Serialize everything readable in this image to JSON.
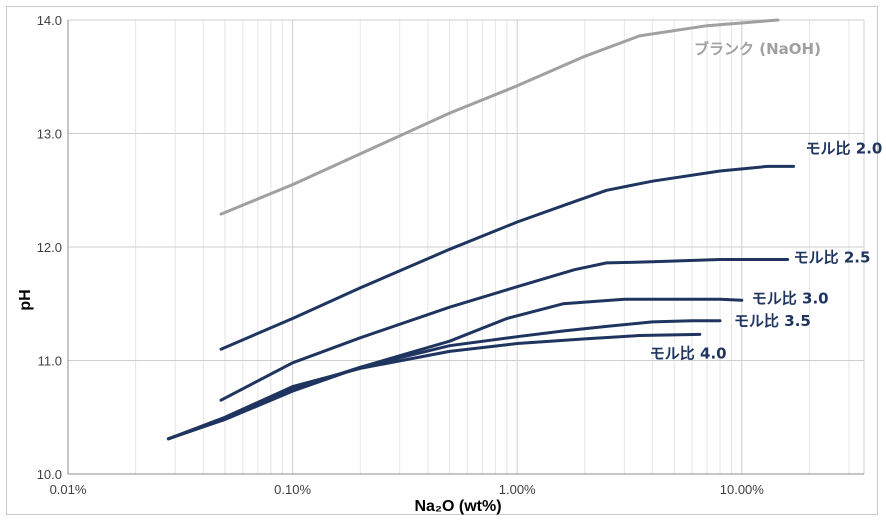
{
  "chart_data": {
    "type": "line",
    "title": "",
    "xlabel": "Na₂O (wt%)",
    "ylabel": "pH",
    "x_scale": "log",
    "xlim": [
      0.01,
      35
    ],
    "ylim": [
      10.0,
      14.0
    ],
    "x_ticks": [
      {
        "value": 0.01,
        "label": "0.01%"
      },
      {
        "value": 0.1,
        "label": "0.10%"
      },
      {
        "value": 1,
        "label": "1.00%"
      },
      {
        "value": 10,
        "label": "10.00%"
      }
    ],
    "y_ticks": [
      {
        "value": 10,
        "label": "10.0"
      },
      {
        "value": 11,
        "label": "11.0"
      },
      {
        "value": 12,
        "label": "12.0"
      },
      {
        "value": 13,
        "label": "13.0"
      },
      {
        "value": 14,
        "label": "14.0"
      }
    ],
    "grid": true,
    "series": [
      {
        "name": "ブランク (NaOH)",
        "color": "#a0a0a0",
        "x": [
          0.048,
          0.1,
          0.2,
          0.5,
          1.0,
          2.0,
          3.5,
          7.0,
          14.5
        ],
        "y": [
          12.29,
          12.55,
          12.82,
          13.18,
          13.42,
          13.68,
          13.86,
          13.95,
          14.0
        ]
      },
      {
        "name": "モル比 2.0",
        "color": "#1f3560",
        "x": [
          0.048,
          0.1,
          0.2,
          0.5,
          1.0,
          1.8,
          2.5,
          4.0,
          8.0,
          13.0,
          17.0
        ],
        "y": [
          11.1,
          11.37,
          11.64,
          11.98,
          12.22,
          12.4,
          12.5,
          12.58,
          12.67,
          12.71,
          12.71
        ]
      },
      {
        "name": "モル比 2.5",
        "color": "#1f3560",
        "x": [
          0.048,
          0.1,
          0.2,
          0.5,
          1.0,
          1.8,
          2.5,
          4.0,
          8.0,
          12.0,
          16.0
        ],
        "y": [
          10.65,
          10.98,
          11.2,
          11.47,
          11.65,
          11.8,
          11.86,
          11.87,
          11.89,
          11.89,
          11.89
        ]
      },
      {
        "name": "モル比 3.0",
        "color": "#1f3560",
        "x": [
          0.028,
          0.05,
          0.1,
          0.2,
          0.5,
          0.9,
          1.6,
          3.0,
          5.0,
          8.0,
          10.0
        ],
        "y": [
          10.31,
          10.48,
          10.73,
          10.94,
          11.17,
          11.37,
          11.5,
          11.54,
          11.54,
          11.54,
          11.53
        ]
      },
      {
        "name": "モル比 3.5",
        "color": "#1f3560",
        "x": [
          0.028,
          0.05,
          0.1,
          0.2,
          0.5,
          1.0,
          1.6,
          2.5,
          4.0,
          6.0,
          8.0
        ],
        "y": [
          10.31,
          10.49,
          10.75,
          10.94,
          11.13,
          11.21,
          11.26,
          11.3,
          11.34,
          11.35,
          11.35
        ]
      },
      {
        "name": "モル比 4.0",
        "color": "#1f3560",
        "x": [
          0.028,
          0.05,
          0.1,
          0.2,
          0.5,
          1.0,
          2.0,
          3.5,
          6.5
        ],
        "y": [
          10.31,
          10.5,
          10.77,
          10.93,
          11.08,
          11.15,
          11.19,
          11.22,
          11.23
        ]
      }
    ]
  }
}
